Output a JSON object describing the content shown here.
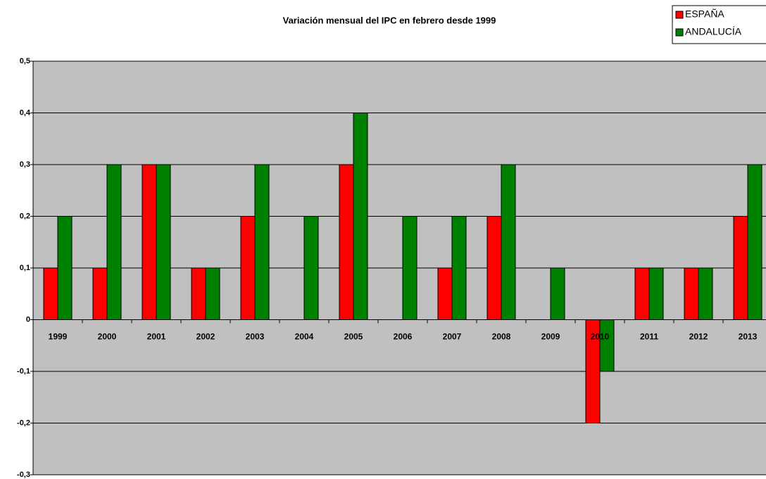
{
  "chart_data": {
    "type": "bar",
    "title": "Variación mensual del IPC en febrero desde 1999",
    "categories": [
      "1999",
      "2000",
      "2001",
      "2002",
      "2003",
      "2004",
      "2005",
      "2006",
      "2007",
      "2008",
      "2009",
      "2010",
      "2011",
      "2012",
      "2013"
    ],
    "series": [
      {
        "name": "ESPAÑA",
        "color": "#ff0000",
        "values": [
          0.1,
          0.1,
          0.3,
          0.1,
          0.2,
          0,
          0.3,
          0,
          0.1,
          0.2,
          0,
          -0.2,
          0.1,
          0.1,
          0.2
        ]
      },
      {
        "name": "ANDALUCÍA",
        "color": "#008000",
        "values": [
          0.2,
          0.3,
          0.3,
          0.1,
          0.3,
          0.2,
          0.4,
          0.2,
          0.2,
          0.3,
          0.1,
          -0.1,
          0.1,
          0.1,
          0.3
        ]
      }
    ],
    "ylim": [
      -0.3,
      0.5
    ],
    "yticks": [
      {
        "value": -0.3,
        "label": "-0,3"
      },
      {
        "value": -0.2,
        "label": "-0,2"
      },
      {
        "value": -0.1,
        "label": "-0,1"
      },
      0,
      {
        "value": 0.1,
        "label": "0,1"
      },
      {
        "value": 0.2,
        "label": "0,2"
      },
      {
        "value": 0.3,
        "label": "0,3"
      },
      {
        "value": 0.4,
        "label": "0,4"
      },
      {
        "value": 0.5,
        "label": "0,5"
      }
    ],
    "grid": true,
    "legend": "top-right"
  }
}
